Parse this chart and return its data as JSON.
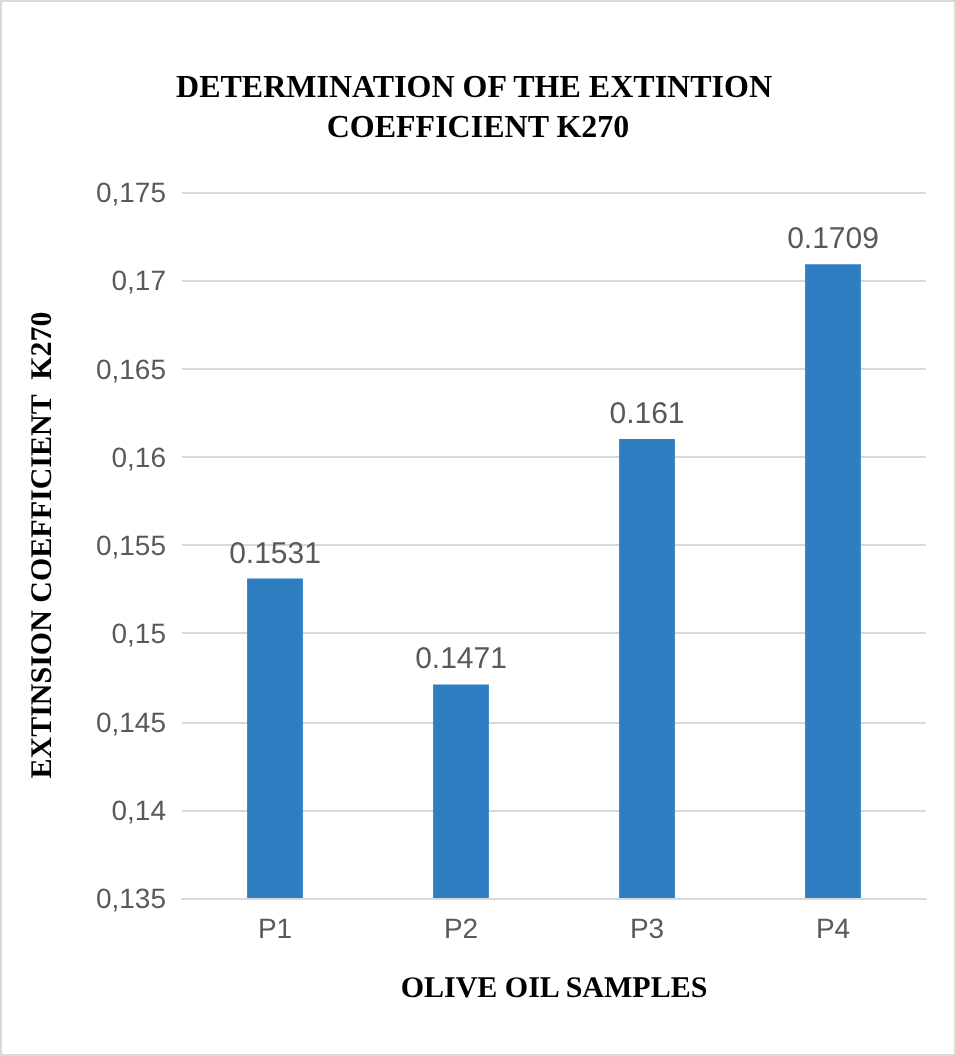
{
  "chart_data": {
    "type": "bar",
    "title": "DETERMINATION OF THE EXTINTION COEFFICIENT K270",
    "xlabel": "OLIVE OIL SAMPLES",
    "ylabel": "EXTINSION COEFFICIENT  K270",
    "categories": [
      "P1",
      "P2",
      "P3",
      "P4"
    ],
    "values": [
      0.1531,
      0.1471,
      0.161,
      0.1709
    ],
    "color": "#2e7ec1",
    "ylim": [
      0.135,
      0.175
    ],
    "yticks": [
      {
        "value": 0.135,
        "label": "0,135"
      },
      {
        "value": 0.14,
        "label": "0,14"
      },
      {
        "value": 0.145,
        "label": "0,145"
      },
      {
        "value": 0.15,
        "label": "0,15"
      },
      {
        "value": 0.155,
        "label": "0,155"
      },
      {
        "value": 0.16,
        "label": "0,16"
      },
      {
        "value": 0.165,
        "label": "0,165"
      },
      {
        "value": 0.17,
        "label": "0,17"
      },
      {
        "value": 0.175,
        "label": "0,175"
      }
    ],
    "grid": true,
    "data_labels": true
  }
}
